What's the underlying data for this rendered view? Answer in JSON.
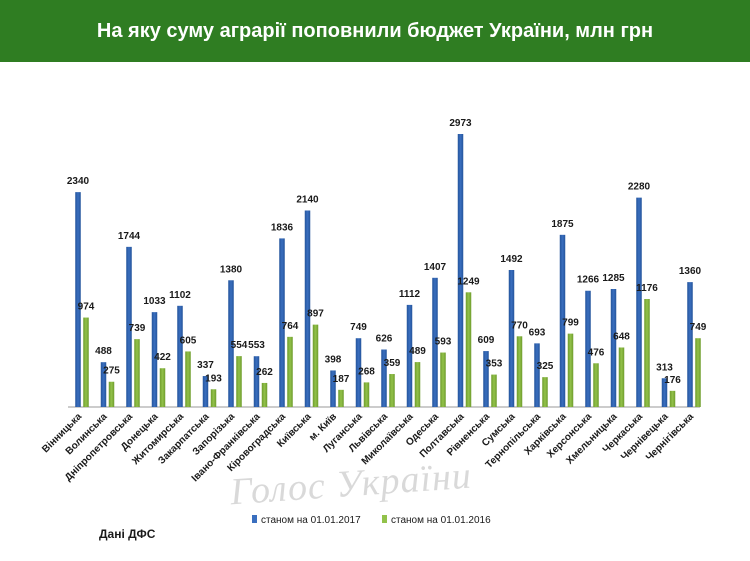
{
  "header": {
    "title": "На яку суму аграрії поповнили бюджет України, млн грн"
  },
  "source": "Дані ДФС",
  "watermark": "Голос України",
  "colors": {
    "header_bg": "#2f7d22",
    "series_2017": "#3a6fbf",
    "series_2016": "#92c24a"
  },
  "chart_data": {
    "type": "bar",
    "title": "На яку суму аграрії поповнили бюджет України, млн грн",
    "xlabel": "",
    "ylabel": "",
    "ylim": [
      0,
      2973
    ],
    "grid": false,
    "legend_position": "bottom",
    "categories": [
      "Вінницька",
      "Волинська",
      "Дніпропетровська",
      "Донецька",
      "Житомирська",
      "Закарпатська",
      "Запорізька",
      "Івано-Франківська",
      "Кіровоградська",
      "Київська",
      "м. Київ",
      "Луганська",
      "Львівська",
      "Миколаївська",
      "Одеська",
      "Полтавська",
      "Рівненська",
      "Сумська",
      "Тернопільська",
      "Харківська",
      "Херсонська",
      "Хмельницька",
      "Черкаська",
      "Чернівецька",
      "Чернігівська"
    ],
    "series": [
      {
        "name": "станом на 01.01.2017",
        "color": "#3a6fbf",
        "values": [
          2340,
          488,
          1744,
          1033,
          1102,
          337,
          1380,
          553,
          1836,
          2140,
          398,
          749,
          626,
          1112,
          1407,
          2973,
          609,
          1492,
          693,
          1875,
          1266,
          1285,
          2280,
          313,
          1360
        ]
      },
      {
        "name": "станом на 01.01.2016",
        "color": "#92c24a",
        "values": [
          974,
          275,
          739,
          422,
          605,
          193,
          554,
          262,
          764,
          897,
          187,
          268,
          359,
          489,
          593,
          1249,
          353,
          770,
          325,
          799,
          476,
          648,
          1176,
          176,
          749
        ]
      }
    ]
  }
}
